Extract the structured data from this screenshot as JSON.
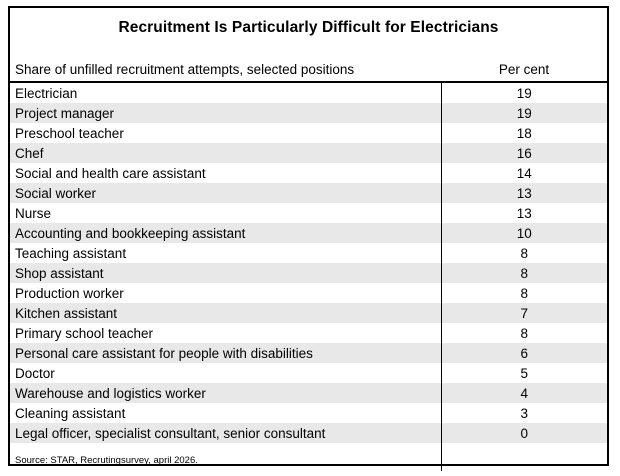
{
  "page": {
    "title": "Recruitment Is Particularly Difficult for Electricians"
  },
  "colors": {
    "row_stripe": "#e8e8e8",
    "table_border": "#000000",
    "background": "#ffffff",
    "text": "#000000"
  },
  "chart_data": {
    "type": "table",
    "title": "Recruitment Is Particularly Difficult for Electricians",
    "columns": [
      "Share of unfilled recruitment attempts, selected positions",
      "Per cent"
    ],
    "categories": [
      "Electrician",
      "Project manager",
      "Preschool teacher",
      "Chef",
      "Social and health care assistant",
      "Social worker",
      "Nurse",
      "Accounting and bookkeeping assistant",
      "Teaching assistant",
      "Shop assistant",
      "Production worker",
      "Kitchen assistant",
      "Primary school teacher",
      "Personal care assistant for people with disabilities",
      "Doctor",
      "Warehouse and logistics worker",
      "Cleaning assistant",
      "Legal officer, specialist consultant, senior consultant"
    ],
    "values": [
      19,
      19,
      18,
      16,
      14,
      13,
      13,
      10,
      8,
      8,
      8,
      7,
      8,
      6,
      5,
      4,
      3,
      0
    ],
    "unit": "Per cent",
    "source": "Source: STAR, Recrutingsurvey, april 2026.",
    "layout": {
      "striped": true,
      "stripe_pattern": "even-rows-gray",
      "value_alignment": "center",
      "grid": "outer-border, header-underline, value-column-divider"
    }
  }
}
